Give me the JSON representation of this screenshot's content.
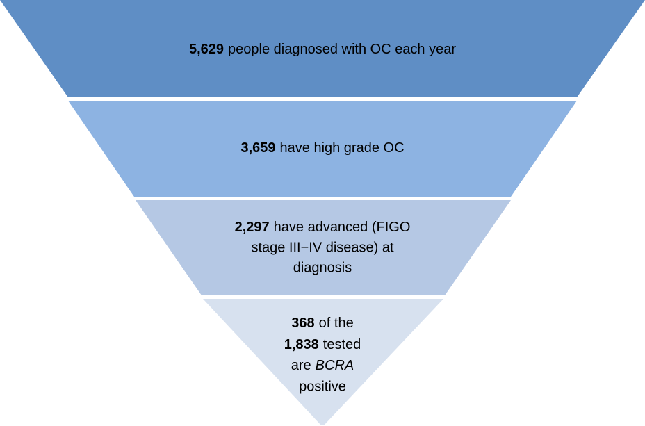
{
  "funnel": {
    "levels": [
      {
        "lines": [
          [
            "5,629",
            "people diagnosed with OC each year"
          ]
        ]
      },
      {
        "lines": [
          [
            "3,659",
            "have high grade OC"
          ]
        ]
      },
      {
        "lines": [
          [
            "2,297",
            "have advanced (FIGO"
          ],
          [
            "stage III−IV disease) at"
          ],
          [
            "diagnosis"
          ]
        ]
      },
      {
        "lines": [
          [
            "368",
            "of the"
          ],
          [
            "1,838",
            "tested"
          ],
          [
            "are",
            "BCRA"
          ],
          [
            "positive"
          ]
        ]
      }
    ]
  }
}
